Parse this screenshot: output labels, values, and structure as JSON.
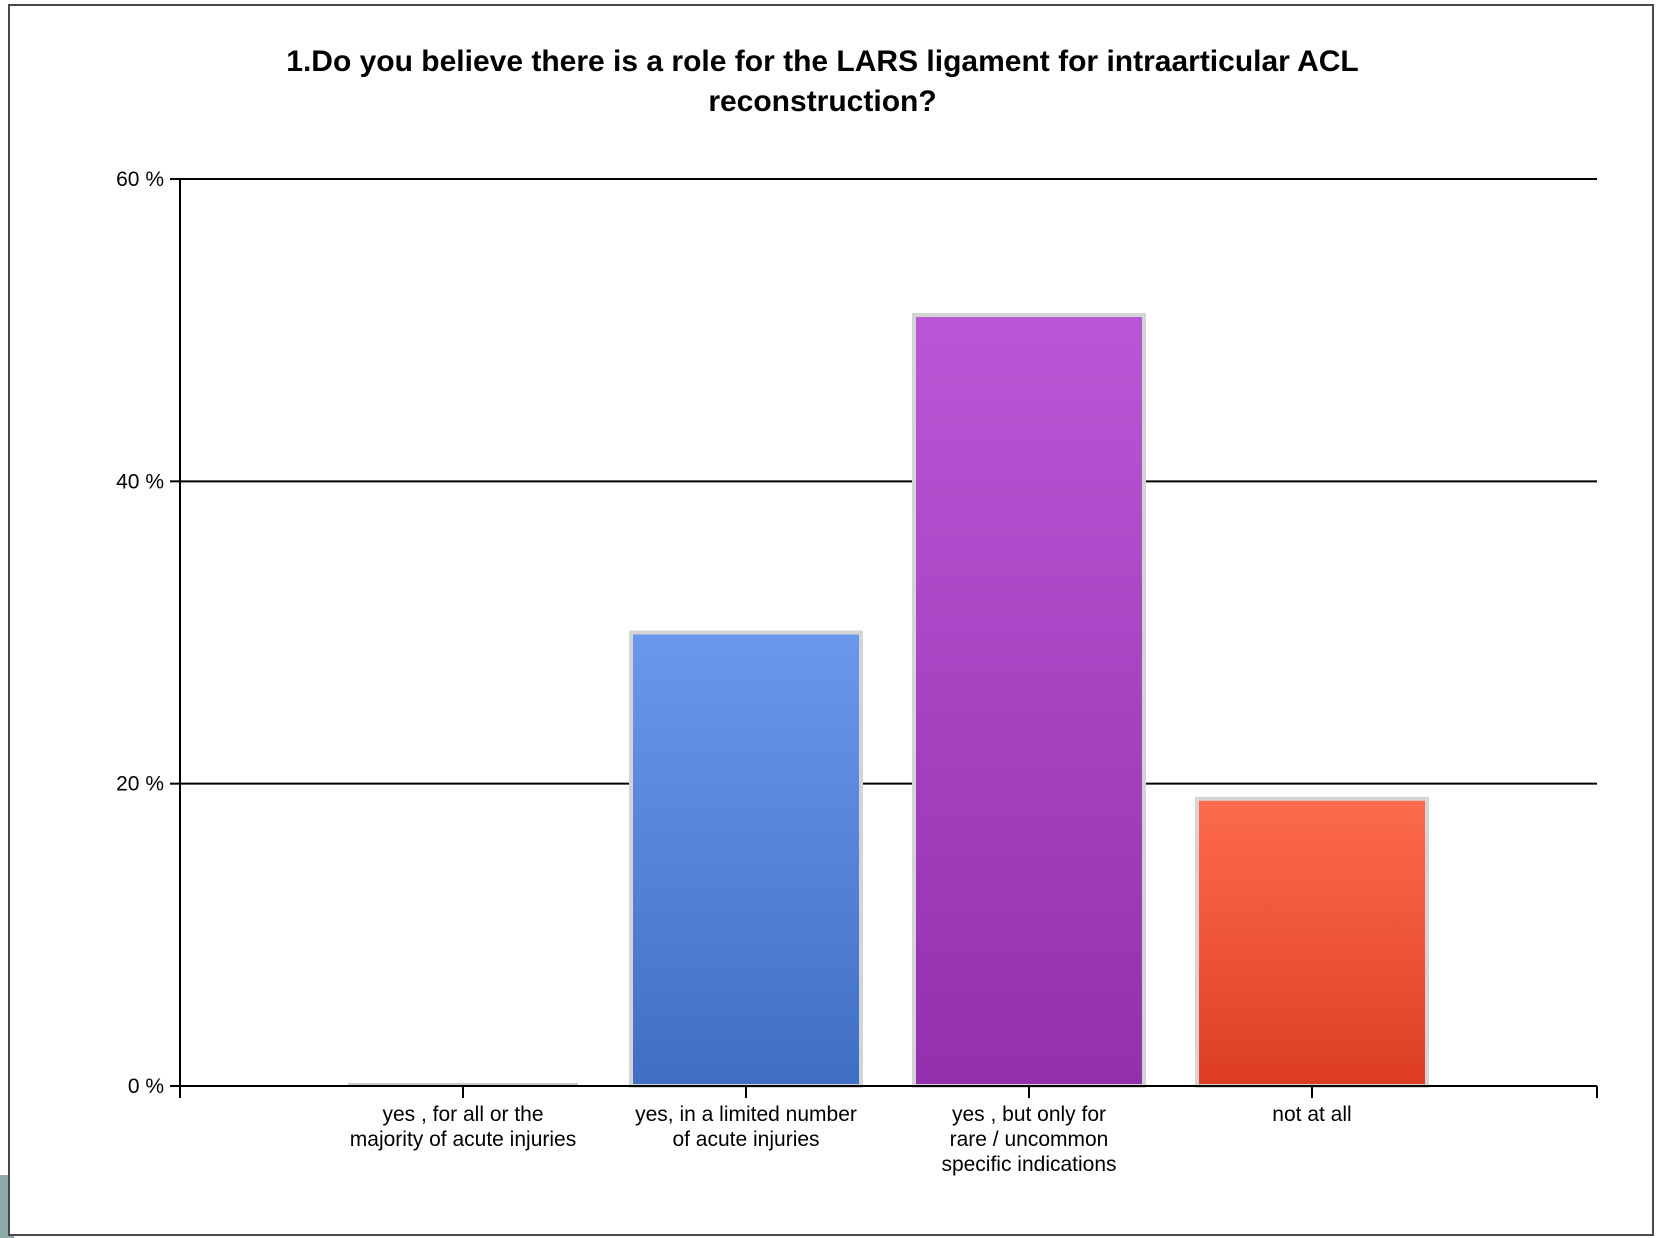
{
  "chart_data": {
    "type": "bar",
    "title": "1.Do you believe there is a role for the LARS ligament for intraarticular ACL\nreconstruction?",
    "xlabel": "",
    "ylabel": "",
    "categories": [
      [
        "yes , for all or the",
        "majority of acute injuries"
      ],
      [
        "yes, in a limited number",
        "of acute injuries"
      ],
      [
        "yes , but only for",
        "rare / uncommon",
        "specific indications"
      ],
      [
        "not at all"
      ]
    ],
    "values": [
      0,
      30,
      51,
      19
    ],
    "bar_colors": [
      [
        "#c8c8c8",
        "#c8c8c8"
      ],
      [
        "#6a98ea",
        "#3f6fc4"
      ],
      [
        "#bb56d6",
        "#9330ac"
      ],
      [
        "#fe6b4e",
        "#dc3d22"
      ]
    ],
    "ylim": [
      0,
      60
    ],
    "yticks": [
      0,
      20,
      40,
      60
    ],
    "ytick_labels": [
      "0 %",
      "20 %",
      "40 %",
      "60 %"
    ],
    "grid": true,
    "legend": "none"
  }
}
